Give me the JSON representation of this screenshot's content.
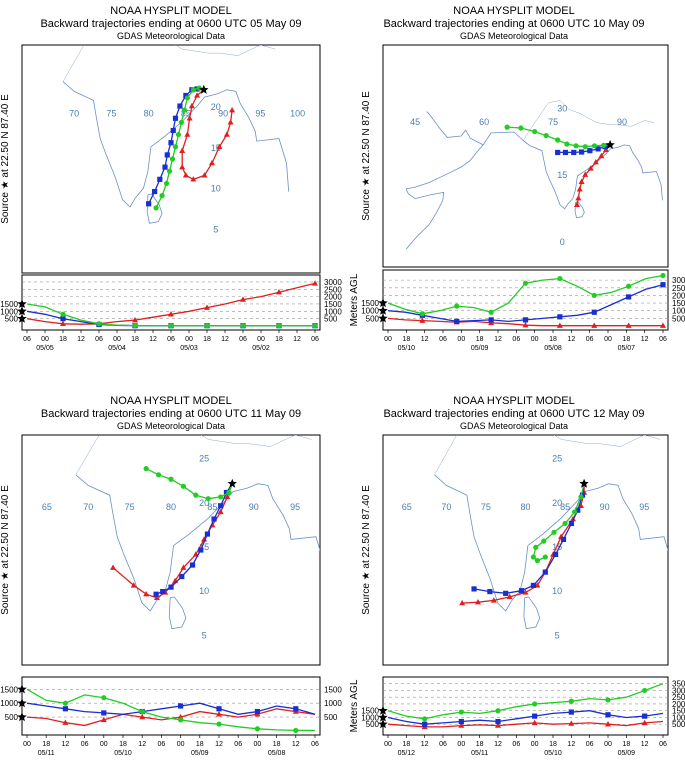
{
  "chart_data": [
    {
      "type": "line",
      "title": "NOAA HYSPLIT MODEL",
      "subtitle": "Backward trajectories ending at 0600 UTC 05 May 09",
      "source_note": "GDAS Meteorological Data",
      "ylabel_map": [
        "Source",
        "at",
        "22.50 N",
        "87.40 E"
      ],
      "ylabel_profile": "Meters AGL",
      "lon_labels": [
        "70",
        "75",
        "80",
        "85",
        "90",
        "95",
        "100"
      ],
      "lat_labels": [
        "5",
        "10",
        "15",
        "20"
      ],
      "time_ticks": [
        "06",
        "00",
        "18",
        "12",
        "06",
        "00",
        "18",
        "12",
        "06",
        "00",
        "18",
        "12",
        "06",
        "00",
        "18",
        "12",
        "06"
      ],
      "date_labels": [
        "05/05",
        "05/04",
        "05/03",
        "05/02"
      ],
      "profile_axis_left": [
        "1500",
        "1000",
        "500"
      ],
      "profile_axis_right": [
        "3000",
        "2500",
        "2000",
        "1500",
        "1000",
        "500"
      ],
      "series": [
        {
          "name": "500 m",
          "color": "#e02020",
          "marker": "triangle",
          "heights": [
            500,
            300,
            150,
            120,
            150,
            300,
            400,
            600,
            800,
            1000,
            1250,
            1500,
            1800,
            2000,
            2300,
            2600,
            2900
          ],
          "track": [
            [
              87.4,
              22.5
            ],
            [
              86.5,
              21.8
            ],
            [
              85.8,
              20.5
            ],
            [
              85.5,
              19
            ],
            [
              85.2,
              17
            ],
            [
              84.5,
              15
            ],
            [
              84.5,
              13
            ],
            [
              85,
              12
            ],
            [
              86,
              11.5
            ],
            [
              87.5,
              12
            ],
            [
              88.5,
              13.5
            ],
            [
              89.5,
              15.5
            ],
            [
              90.5,
              17
            ],
            [
              91,
              18.5
            ],
            [
              91.2,
              20
            ]
          ]
        },
        {
          "name": "1000 m",
          "color": "#1a2fd0",
          "marker": "square",
          "heights": [
            1000,
            800,
            500,
            300,
            100,
            50,
            20,
            20,
            20,
            20,
            20,
            20,
            20,
            20,
            20,
            20,
            20
          ],
          "track": [
            [
              87.4,
              22.5
            ],
            [
              86.5,
              22.6
            ],
            [
              85.8,
              22.5
            ],
            [
              85,
              21.8
            ],
            [
              84.2,
              20.5
            ],
            [
              83.6,
              19
            ],
            [
              83.3,
              17.5
            ],
            [
              83,
              16
            ],
            [
              82.5,
              14.5
            ],
            [
              82.2,
              13
            ],
            [
              81.5,
              11.5
            ],
            [
              80.8,
              10
            ],
            [
              80,
              8.5
            ]
          ]
        },
        {
          "name": "1500 m",
          "color": "#22cc22",
          "marker": "circle",
          "heights": [
            1500,
            1300,
            800,
            400,
            150,
            60,
            30,
            20,
            20,
            20,
            20,
            20,
            20,
            20,
            20,
            20,
            20
          ],
          "track": [
            [
              87.4,
              22.5
            ],
            [
              86.8,
              22.7
            ],
            [
              86,
              22.5
            ],
            [
              85.2,
              21.5
            ],
            [
              84.8,
              20
            ],
            [
              84.4,
              18.5
            ],
            [
              84,
              17
            ],
            [
              83.6,
              15.5
            ],
            [
              83.2,
              14
            ],
            [
              82.8,
              12.5
            ],
            [
              82.4,
              11
            ],
            [
              81.8,
              9.5
            ],
            [
              81,
              8
            ]
          ]
        }
      ]
    },
    {
      "type": "line",
      "title": "NOAA HYSPLIT MODEL",
      "subtitle": "Backward trajectories ending at 0600 UTC 10 May 09",
      "source_note": "GDAS Meteorological Data",
      "ylabel_map": [
        "Source",
        "at",
        "22.50 N",
        "87.40 E"
      ],
      "ylabel_profile": "Meters AGL",
      "lon_labels": [
        "45",
        "60",
        "75",
        "90"
      ],
      "lat_labels": [
        "0",
        "15",
        "30"
      ],
      "time_ticks": [
        "00",
        "18",
        "12",
        "06",
        "00",
        "18",
        "12",
        "06",
        "00",
        "18",
        "12",
        "06",
        "00",
        "18",
        "12",
        "06"
      ],
      "date_labels": [
        "05/10",
        "05/09",
        "05/08",
        "05/07"
      ],
      "profile_axis_left": [
        "1500",
        "1000",
        "500"
      ],
      "profile_axis_right": [
        "3000",
        "2500",
        "2000",
        "1500",
        "1000",
        "500"
      ],
      "series": [
        {
          "name": "500 m",
          "color": "#e02020",
          "marker": "triangle",
          "heights": [
            500,
            400,
            350,
            300,
            250,
            300,
            200,
            150,
            50,
            20,
            20,
            20,
            20,
            20,
            20,
            20,
            20
          ]
        },
        {
          "name": "1000 m",
          "color": "#1a2fd0",
          "marker": "square",
          "heights": [
            1000,
            900,
            700,
            500,
            300,
            350,
            400,
            300,
            400,
            500,
            600,
            700,
            900,
            1400,
            1900,
            2400,
            2700
          ]
        },
        {
          "name": "1500 m",
          "color": "#22cc22",
          "marker": "circle",
          "heights": [
            1500,
            1100,
            800,
            1000,
            1300,
            1200,
            900,
            1500,
            2800,
            3000,
            3100,
            2600,
            2000,
            2200,
            2600,
            3100,
            3300
          ]
        }
      ]
    },
    {
      "type": "line",
      "title": "NOAA HYSPLIT MODEL",
      "subtitle": "Backward trajectories ending at 0600 UTC 11 May 09",
      "source_note": "GDAS Meteorological Data",
      "ylabel_map": [
        "Source",
        "at",
        "22.50 N",
        "87.40 E"
      ],
      "ylabel_profile": "Meters AGL",
      "lon_labels": [
        "65",
        "70",
        "75",
        "80",
        "85",
        "90",
        "95"
      ],
      "lat_labels": [
        "5",
        "10",
        "15",
        "20",
        "25"
      ],
      "time_ticks": [
        "00",
        "18",
        "12",
        "06",
        "00",
        "18",
        "12",
        "06",
        "00",
        "18",
        "12",
        "06",
        "00",
        "18",
        "12",
        "06"
      ],
      "date_labels": [
        "05/11",
        "05/10",
        "05/09",
        "05/08"
      ],
      "profile_axis_left": [
        "1500",
        "1000",
        "500"
      ],
      "profile_axis_right": [
        "1500",
        "1000",
        "500"
      ],
      "series": [
        {
          "name": "500 m",
          "color": "#e02020",
          "marker": "triangle",
          "heights": [
            500,
            450,
            300,
            200,
            400,
            600,
            500,
            400,
            500,
            700,
            600,
            500,
            600,
            800,
            700,
            600
          ]
        },
        {
          "name": "1000 m",
          "color": "#1a2fd0",
          "marker": "square",
          "heights": [
            1000,
            900,
            800,
            700,
            650,
            600,
            700,
            800,
            900,
            1000,
            800,
            600,
            700,
            900,
            800,
            600
          ]
        },
        {
          "name": "1500 m",
          "color": "#22cc22",
          "marker": "circle",
          "heights": [
            1500,
            1100,
            1000,
            1300,
            1200,
            1000,
            700,
            500,
            400,
            300,
            250,
            150,
            80,
            40,
            20,
            20
          ]
        }
      ]
    },
    {
      "type": "line",
      "title": "NOAA HYSPLIT MODEL",
      "subtitle": "Backward trajectories ending at 0600 UTC 12 May 09",
      "source_note": "GDAS Meteorological Data",
      "ylabel_map": [
        "Source",
        "at",
        "22.50 N",
        "87.40 E"
      ],
      "ylabel_profile": "Meters AGL",
      "lon_labels": [
        "65",
        "70",
        "75",
        "80",
        "85",
        "90",
        "95"
      ],
      "lat_labels": [
        "5",
        "10",
        "15",
        "20",
        "25"
      ],
      "time_ticks": [
        "00",
        "18",
        "12",
        "06",
        "00",
        "18",
        "12",
        "06",
        "00",
        "18",
        "12",
        "06",
        "00",
        "18",
        "12",
        "06"
      ],
      "date_labels": [
        "05/12",
        "05/11",
        "05/10",
        "05/09"
      ],
      "profile_axis_left": [
        "1500",
        "1000",
        "500"
      ],
      "profile_axis_right": [
        "3500",
        "3000",
        "2500",
        "2000",
        "1500",
        "1000",
        "500"
      ],
      "series": [
        {
          "name": "500 m",
          "color": "#e02020",
          "marker": "triangle",
          "heights": [
            500,
            400,
            300,
            300,
            400,
            450,
            400,
            500,
            600,
            500,
            550,
            600,
            500,
            400,
            600,
            700
          ]
        },
        {
          "name": "1000 m",
          "color": "#1a2fd0",
          "marker": "square",
          "heights": [
            1000,
            700,
            500,
            600,
            700,
            800,
            700,
            900,
            1100,
            1300,
            1400,
            1500,
            1200,
            1000,
            1100,
            1300
          ]
        },
        {
          "name": "1500 m",
          "color": "#22cc22",
          "marker": "circle",
          "heights": [
            1500,
            1100,
            900,
            1200,
            1400,
            1300,
            1500,
            1800,
            2000,
            2100,
            2200,
            2400,
            2300,
            2500,
            3000,
            3500
          ]
        }
      ]
    }
  ]
}
